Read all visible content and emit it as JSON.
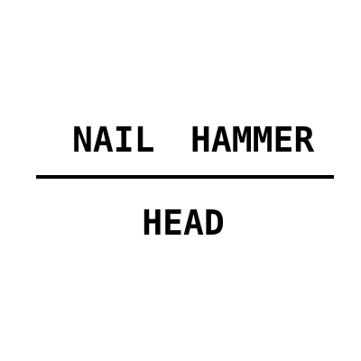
{
  "top_words": [
    "NAIL",
    "HAMMER"
  ],
  "bottom_word": "HEAD",
  "colors": {
    "text": "#000000",
    "divider": "#000000",
    "background": "#ffffff"
  }
}
